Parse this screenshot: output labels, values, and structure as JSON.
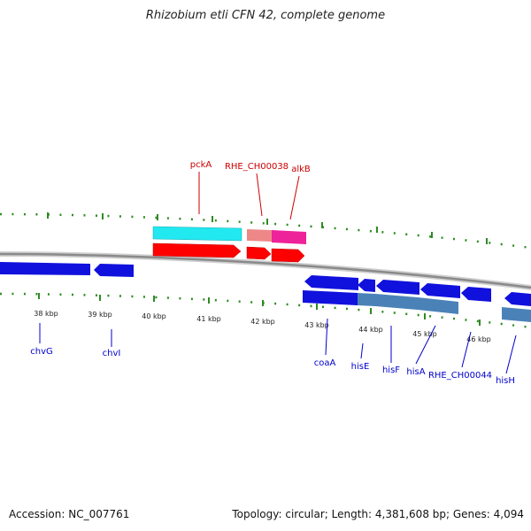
{
  "title": "Rhizobium etli CFN 42, complete genome",
  "footer": {
    "accession": "Accession: NC_007761",
    "topology": "Topology: circular; Length: 4,381,608 bp; Genes: 4,094"
  },
  "colors": {
    "backbone": "#8a8a8a",
    "tick": "#2e8b22",
    "label_top": "#cc0000",
    "label_bottom": "#0000cc",
    "cyan": "#22e8f0",
    "red": "#ff0000",
    "salmon": "#ee8888",
    "magenta": "#ee2299",
    "blue": "#1111dd",
    "steel": "#4a82b8"
  },
  "axis": {
    "kbp_labels": [
      "38 kbp",
      "39 kbp",
      "40 kbp",
      "41 kbp",
      "42 kbp",
      "43 kbp",
      "44 kbp",
      "45 kbp",
      "46 kbp"
    ]
  },
  "genes_top": [
    "pckA",
    "RHE_CH00038",
    "alkB"
  ],
  "genes_bottom": [
    "chvG",
    "chvI",
    "coaA",
    "hisE",
    "hisF",
    "hisA",
    "RHE_CH00044",
    "hisH"
  ]
}
